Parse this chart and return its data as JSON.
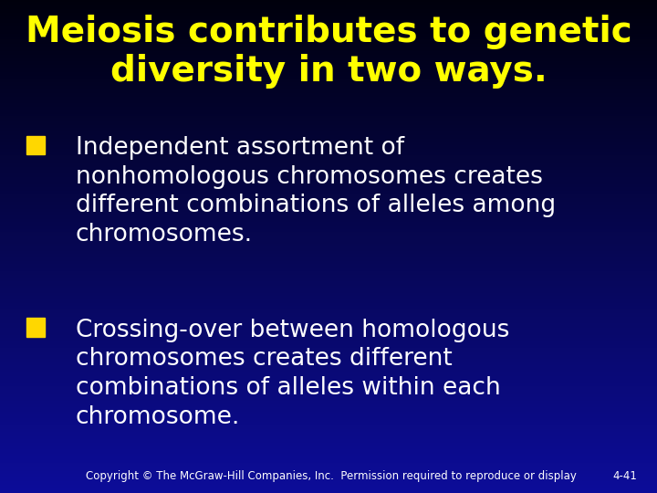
{
  "title_line1": "Meiosis contributes to genetic",
  "title_line2": "diversity in two ways.",
  "title_color": "#FFFF00",
  "title_fontsize": 28,
  "bullet1_lines": [
    "Independent assortment of",
    "nonhomologous chromosomes creates",
    "different combinations of alleles among",
    "chromosomes."
  ],
  "bullet2_lines": [
    "Crossing-over between homologous",
    "chromosomes creates different",
    "combinations of alleles within each",
    "chromosome."
  ],
  "bullet_color": "#FFFFFF",
  "bullet_fontsize": 19,
  "bullet_square_color": "#FFD700",
  "footer_text": "Copyright © The McGraw-Hill Companies, Inc.  Permission required to reproduce or display",
  "footer_right": "4-41",
  "footer_color": "#FFFFFF",
  "footer_fontsize": 8.5,
  "bg_top": "#000010",
  "bg_mid": "#0a0a6a",
  "bg_bottom": "#1a3aaa"
}
